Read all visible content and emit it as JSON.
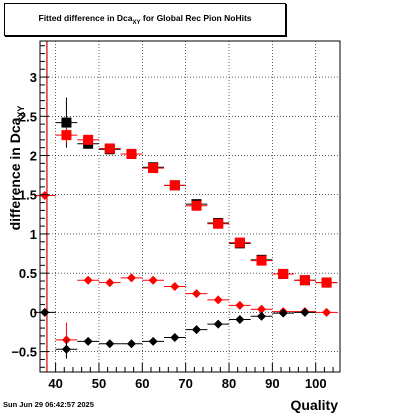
{
  "title": {
    "main": "Fitted difference in Dca",
    "sub": "XY",
    "rest": " for Global Rec Pion NoHits"
  },
  "timestamp": "Sun Jun 29 06:42:57 2025",
  "chart_data": {
    "type": "scatter",
    "ylabel_main": "difference in Dca",
    "ylabel_sub": "XY",
    "xlabel": "Quality",
    "xlim": [
      36.4,
      105.6
    ],
    "ylim": [
      -0.76,
      3.46
    ],
    "xticks": [
      40,
      50,
      60,
      70,
      80,
      90,
      100
    ],
    "yticks": [
      -0.5,
      0,
      0.5,
      1,
      1.5,
      2,
      2.5,
      3
    ],
    "xtick_labels": [
      "40",
      "50",
      "60",
      "70",
      "80",
      "90",
      "100"
    ],
    "ytick_labels": [
      "−0.5",
      "0",
      "0.5",
      "1",
      "1.5",
      "2",
      "2.5",
      "3"
    ],
    "grid": true,
    "vline_x": 38.0,
    "vline_color": "#cc0000",
    "series": [
      {
        "marker": "square",
        "color": "#000000",
        "x": [
          42.5,
          47.5,
          52.5,
          57.5,
          62.5,
          67.5,
          72.5,
          77.5,
          82.5,
          87.5,
          92.5,
          97.5,
          102.5
        ],
        "y": [
          2.42,
          2.15,
          2.08,
          2.02,
          1.85,
          1.62,
          1.38,
          1.14,
          0.88,
          0.67,
          0.49,
          0.41,
          0.38
        ],
        "err": [
          0.32,
          0.05,
          0.03,
          0.02,
          0.02,
          0.02,
          0.02,
          0.02,
          0.02,
          0.02,
          0.02,
          0.02,
          0.02
        ]
      },
      {
        "marker": "square",
        "color": "#ff0000",
        "x": [
          42.5,
          47.5,
          52.5,
          57.5,
          62.5,
          67.5,
          72.5,
          77.5,
          82.5,
          87.5,
          92.5,
          97.5,
          102.5
        ],
        "y": [
          2.26,
          2.2,
          2.09,
          2.02,
          1.84,
          1.62,
          1.36,
          1.13,
          0.89,
          0.66,
          0.49,
          0.41,
          0.38
        ],
        "err": [
          0.1,
          0.06,
          0.03,
          0.02,
          0.02,
          0.02,
          0.02,
          0.02,
          0.02,
          0.02,
          0.02,
          0.02,
          0.02
        ]
      },
      {
        "marker": "diamond",
        "color": "#ff0000",
        "x": [
          37.5,
          47.5,
          52.5,
          57.5,
          62.5,
          67.5,
          72.5,
          77.5,
          82.5,
          87.5,
          92.5,
          97.5,
          102.5
        ],
        "y": [
          1.49,
          0.41,
          0.38,
          0.44,
          0.41,
          0.33,
          0.24,
          0.16,
          0.09,
          0.04,
          0.01,
          0.01,
          0.0
        ],
        "err": [
          0.0,
          0.03,
          0.02,
          0.02,
          0.02,
          0.02,
          0.02,
          0.02,
          0.02,
          0.02,
          0.02,
          0.02,
          0.02
        ]
      },
      {
        "marker": "diamond",
        "color": "#ff0000",
        "x": [
          42.5
        ],
        "y": [
          -0.35
        ],
        "err": [
          0.22
        ]
      },
      {
        "marker": "diamond",
        "color": "#000000",
        "x": [
          37.5,
          42.5,
          47.5,
          52.5,
          57.5,
          62.5,
          67.5,
          72.5,
          77.5,
          82.5,
          87.5,
          92.5,
          97.5
        ],
        "y": [
          0.0,
          -0.47,
          -0.37,
          -0.4,
          -0.4,
          -0.37,
          -0.32,
          -0.22,
          -0.15,
          -0.09,
          -0.05,
          -0.01,
          0.0
        ],
        "err": [
          0.0,
          0.12,
          0.03,
          0.02,
          0.02,
          0.02,
          0.02,
          0.02,
          0.02,
          0.02,
          0.02,
          0.02,
          0.02
        ]
      }
    ]
  }
}
